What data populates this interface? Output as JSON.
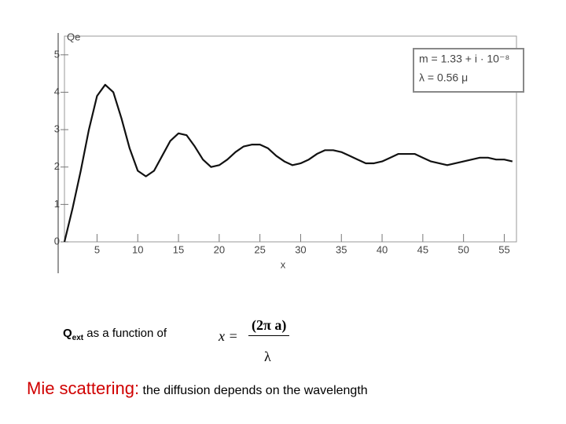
{
  "chart_data": {
    "type": "line",
    "y_label": "Qe",
    "x_label": "x",
    "annotations": [
      "m = 1.33 + i · 10⁻⁸",
      "λ = 0.56 μ"
    ],
    "x": [
      1,
      2,
      3,
      4,
      5,
      6,
      7,
      8,
      9,
      10,
      11,
      12,
      13,
      14,
      15,
      16,
      17,
      18,
      19,
      20,
      21,
      22,
      23,
      24,
      25,
      26,
      27,
      28,
      29,
      30,
      31,
      32,
      33,
      34,
      35,
      36,
      37,
      38,
      39,
      40,
      41,
      42,
      43,
      44,
      45,
      46,
      47,
      48,
      49,
      50,
      51,
      52,
      53,
      54,
      55,
      56
    ],
    "series": [
      {
        "color": "#111111",
        "values": [
          0,
          0.9,
          1.9,
          3.0,
          3.9,
          4.2,
          4.0,
          3.3,
          2.5,
          1.9,
          1.75,
          1.9,
          2.3,
          2.7,
          2.9,
          2.85,
          2.55,
          2.2,
          2.0,
          2.05,
          2.2,
          2.4,
          2.55,
          2.6,
          2.6,
          2.5,
          2.3,
          2.15,
          2.05,
          2.1,
          2.2,
          2.35,
          2.45,
          2.45,
          2.4,
          2.3,
          2.2,
          2.1,
          2.1,
          2.15,
          2.25,
          2.35,
          2.35,
          2.35,
          2.25,
          2.15,
          2.1,
          2.05,
          2.1,
          2.15,
          2.2,
          2.25,
          2.25,
          2.2,
          2.2,
          2.15
        ]
      }
    ],
    "xlim": [
      1,
      56.5
    ],
    "ylim": [
      0,
      5.5
    ],
    "xticks": [
      5,
      10,
      15,
      20,
      25,
      30,
      35,
      40,
      45,
      50,
      55
    ],
    "yticks": [
      0,
      1,
      2,
      3,
      4,
      5
    ]
  },
  "caption": {
    "q": "Q",
    "sub": "ext",
    "text": "as a function of"
  },
  "formula": {
    "lhs": "x =",
    "num": "(2π a)",
    "den": "λ"
  },
  "footer": {
    "title": "Mie scattering:",
    "text": "the diffusion depends on the wavelength"
  }
}
